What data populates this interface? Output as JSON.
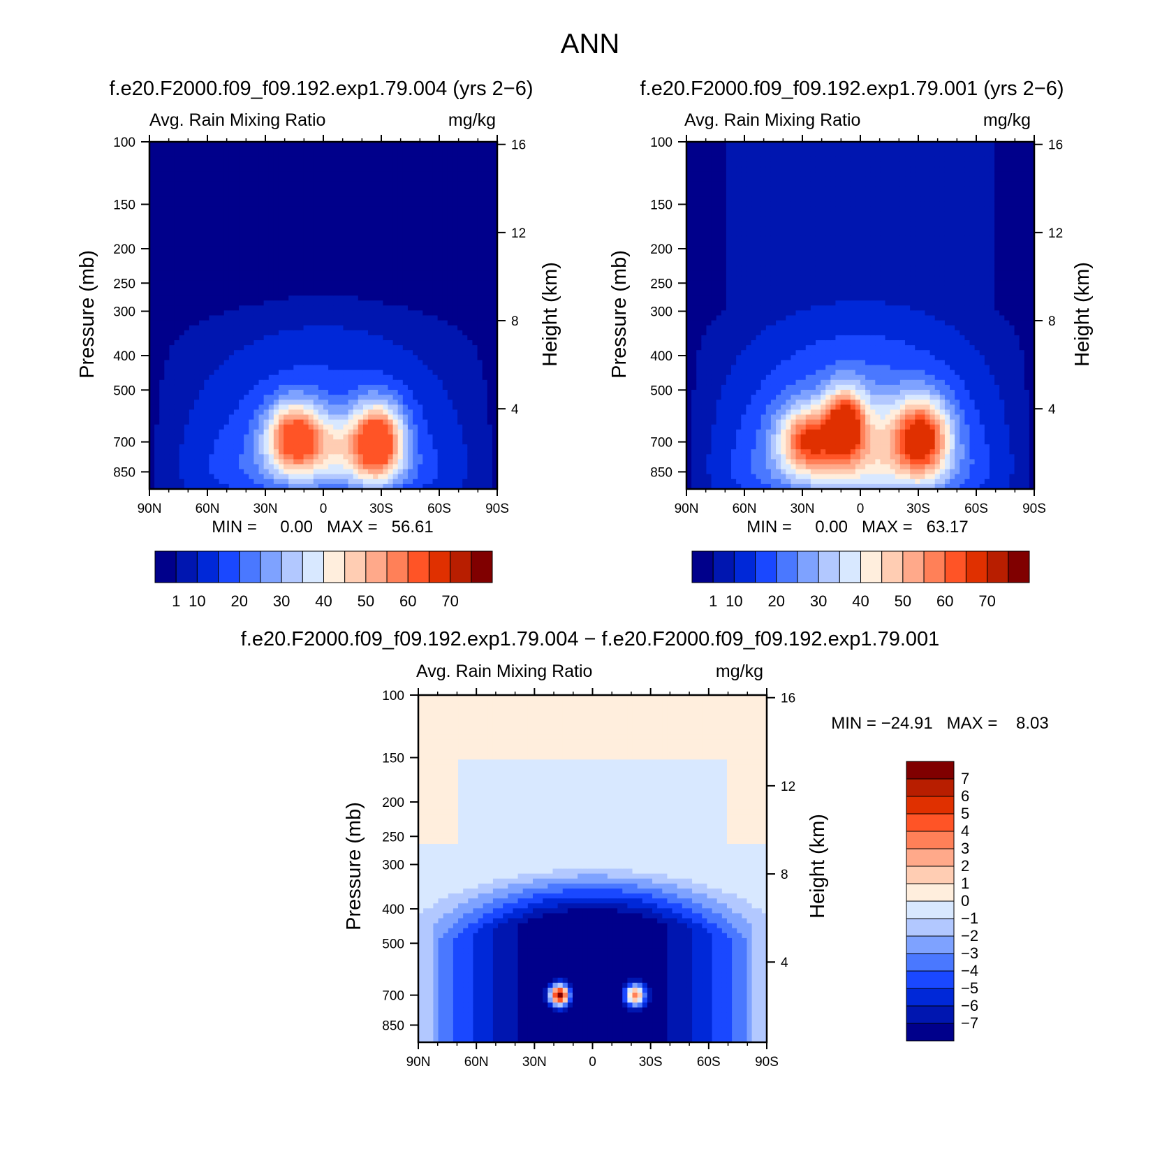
{
  "page_title": "ANN",
  "chart_data": [
    {
      "type": "heatmap",
      "title": "f.e20.F2000.f09_f09.192.exp1.79.004 (yrs 2−6)",
      "field_label": "Avg. Rain Mixing Ratio",
      "units": "mg/kg",
      "xlabel": "",
      "ylabel": "Pressure (mb)",
      "ylabel_right": "Height (km)",
      "x_ticks": [
        "90N",
        "60N",
        "30N",
        "0",
        "30S",
        "60S",
        "90S"
      ],
      "y_ticks": [
        "100",
        "150",
        "200",
        "250",
        "300",
        "400",
        "500",
        "700",
        "850"
      ],
      "y_ticks_right": [
        "16",
        "12",
        "8",
        "4"
      ],
      "y_scale": "log",
      "ylim": [
        100,
        1000
      ],
      "stats": "MIN =     0.00   MAX =   56.61",
      "min": 0.0,
      "max": 56.61,
      "colorbar_labels": [
        "1",
        "10",
        "20",
        "30",
        "40",
        "50",
        "60",
        "70"
      ],
      "blobs": [
        {
          "lat": 15,
          "p": 680,
          "amp": 48,
          "wx": 14,
          "wy": 0.22
        },
        {
          "lat": -28,
          "p": 700,
          "amp": 56,
          "wx": 13,
          "wy": 0.24
        },
        {
          "lat": -5,
          "p": 720,
          "amp": 15,
          "wx": 16,
          "wy": 0.2
        }
      ]
    },
    {
      "type": "heatmap",
      "title": "f.e20.F2000.f09_f09.192.exp1.79.001 (yrs 2−6)",
      "field_label": "Avg. Rain Mixing Ratio",
      "units": "mg/kg",
      "xlabel": "",
      "ylabel": "Pressure (mb)",
      "ylabel_right": "Height (km)",
      "x_ticks": [
        "90N",
        "60N",
        "30N",
        "0",
        "30S",
        "60S",
        "90S"
      ],
      "y_ticks": [
        "100",
        "150",
        "200",
        "250",
        "300",
        "400",
        "500",
        "700",
        "850"
      ],
      "y_ticks_right": [
        "16",
        "12",
        "8",
        "4"
      ],
      "y_scale": "log",
      "ylim": [
        100,
        1000
      ],
      "stats": "MIN =     0.00   MAX =   63.17",
      "min": 0.0,
      "max": 63.17,
      "colorbar_labels": [
        "1",
        "10",
        "20",
        "30",
        "40",
        "50",
        "60",
        "70"
      ],
      "blobs": [
        {
          "lat": 8,
          "p": 620,
          "amp": 58,
          "wx": 10,
          "wy": 0.22
        },
        {
          "lat": 28,
          "p": 690,
          "amp": 48,
          "wx": 14,
          "wy": 0.2
        },
        {
          "lat": -32,
          "p": 680,
          "amp": 63,
          "wx": 14,
          "wy": 0.25
        },
        {
          "lat": 0,
          "p": 700,
          "amp": 20,
          "wx": 30,
          "wy": 0.3
        }
      ]
    },
    {
      "type": "heatmap",
      "title": "f.e20.F2000.f09_f09.192.exp1.79.004 − f.e20.F2000.f09_f09.192.exp1.79.001",
      "field_label": "Avg. Rain Mixing Ratio",
      "units": "mg/kg",
      "xlabel": "",
      "ylabel": "Pressure (mb)",
      "ylabel_right": "Height (km)",
      "x_ticks": [
        "90N",
        "60N",
        "30N",
        "0",
        "30S",
        "60S",
        "90S"
      ],
      "y_ticks": [
        "100",
        "150",
        "200",
        "250",
        "300",
        "400",
        "500",
        "700",
        "850"
      ],
      "y_ticks_right": [
        "16",
        "12",
        "8",
        "4"
      ],
      "y_scale": "log",
      "ylim": [
        100,
        1000
      ],
      "stats": "MIN = −24.91   MAX =    8.03",
      "min": -24.91,
      "max": 8.03,
      "colorbar_labels": [
        "7",
        "6",
        "5",
        "4",
        "3",
        "2",
        "1",
        "0",
        "−1",
        "−2",
        "−3",
        "−4",
        "−5",
        "−6",
        "−7"
      ],
      "positive_spots": [
        {
          "lat": 17,
          "p": 700,
          "amp": 8
        },
        {
          "lat": -22,
          "p": 700,
          "amp": 4
        }
      ]
    }
  ],
  "colors": {
    "sequential": [
      "#00008b",
      "#0016b0",
      "#0028d8",
      "#1a48ff",
      "#4a78ff",
      "#7ea2ff",
      "#b2c8ff",
      "#d8e8ff",
      "#ffeedd",
      "#ffcdb3",
      "#ffa98a",
      "#ff8058",
      "#ff5426",
      "#e03000",
      "#b81e00",
      "#800000"
    ],
    "diverging": [
      "#00008b",
      "#0016b0",
      "#0028d8",
      "#1a48ff",
      "#4a78ff",
      "#7ea2ff",
      "#b2c8ff",
      "#d8e8ff",
      "#ffeedd",
      "#ffcdb3",
      "#ffa98a",
      "#ff8058",
      "#ff5426",
      "#e03000",
      "#b81e00",
      "#800000"
    ]
  }
}
